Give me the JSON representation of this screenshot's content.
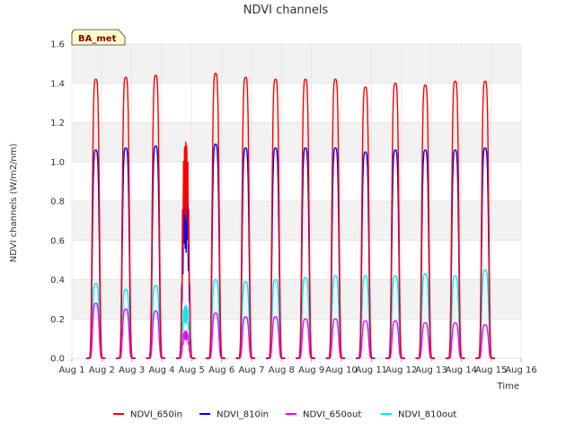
{
  "chart_data": {
    "type": "line",
    "title": "NDVI channels",
    "xlabel": "Time",
    "ylabel": "NDVI channels (W/m2/nm)",
    "badge": "BA_met",
    "xlim": [
      1,
      16
    ],
    "ylim": [
      0.0,
      1.6
    ],
    "x_ticks": [
      1,
      2,
      3,
      4,
      5,
      6,
      7,
      8,
      9,
      10,
      11,
      12,
      13,
      14,
      15,
      16
    ],
    "x_tick_labels": [
      "Aug 1",
      "Aug 2",
      "Aug 3",
      "Aug 4",
      "Aug 5",
      "Aug 6",
      "Aug 7",
      "Aug 8",
      "Aug 9",
      "Aug 10",
      "Aug 11",
      "Aug 12",
      "Aug 13",
      "Aug 14",
      "Aug 15",
      "Aug 16"
    ],
    "y_ticks": [
      0.0,
      0.2,
      0.4,
      0.6,
      0.8,
      1.0,
      1.2,
      1.4,
      1.6
    ],
    "y_tick_labels": [
      "0.0",
      "0.2",
      "0.4",
      "0.6",
      "0.8",
      "1.0",
      "1.2",
      "1.4",
      "1.6"
    ],
    "grid": true,
    "legend_position": "bottom",
    "day_centers": [
      1.8,
      2.8,
      3.8,
      4.8,
      5.8,
      6.8,
      7.8,
      8.8,
      9.8,
      10.8,
      11.8,
      12.8,
      13.8,
      14.8
    ],
    "series": [
      {
        "name": "NDVI_650in",
        "color": "#ff0000",
        "daily_peaks": [
          1.42,
          1.43,
          1.44,
          1.1,
          1.45,
          1.43,
          1.42,
          1.42,
          1.42,
          1.38,
          1.4,
          1.39,
          1.41,
          1.41
        ]
      },
      {
        "name": "NDVI_810in",
        "color": "#0000ff",
        "daily_peaks": [
          1.06,
          1.07,
          1.08,
          0.84,
          1.09,
          1.07,
          1.07,
          1.07,
          1.07,
          1.05,
          1.06,
          1.06,
          1.06,
          1.07
        ]
      },
      {
        "name": "NDVI_650out",
        "color": "#ff00ff",
        "daily_peaks": [
          0.28,
          0.25,
          0.24,
          0.14,
          0.23,
          0.21,
          0.21,
          0.2,
          0.2,
          0.19,
          0.19,
          0.18,
          0.18,
          0.17
        ]
      },
      {
        "name": "NDVI_810out",
        "color": "#00eeee",
        "daily_peaks": [
          0.38,
          0.35,
          0.37,
          0.27,
          0.4,
          0.39,
          0.4,
          0.41,
          0.42,
          0.42,
          0.42,
          0.43,
          0.42,
          0.45
        ]
      }
    ]
  }
}
